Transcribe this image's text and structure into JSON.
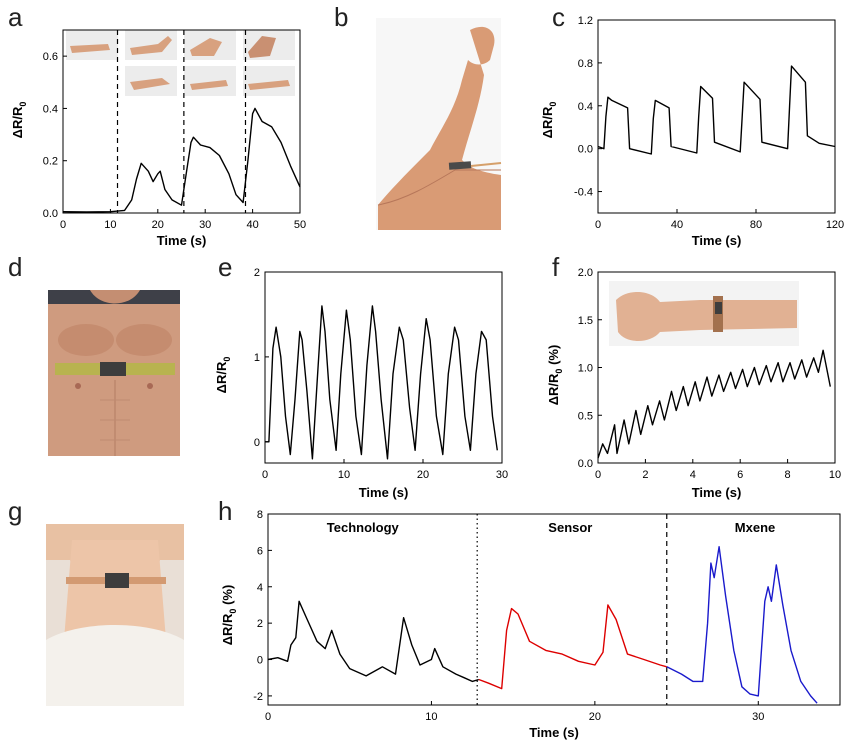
{
  "panel_letters": {
    "a": "a",
    "b": "b",
    "c": "c",
    "d": "d",
    "e": "e",
    "f": "f",
    "g": "g",
    "h": "h"
  },
  "chart_data": [
    {
      "panel": "a",
      "type": "line",
      "xlabel": "Time (s)",
      "ylabel": "ΔR/R0",
      "xlim": [
        0,
        50
      ],
      "ylim": [
        0,
        0.7
      ],
      "xticks": [
        0,
        10,
        20,
        30,
        40,
        50
      ],
      "yticks": [
        0.0,
        0.2,
        0.4,
        0.6
      ],
      "ytick_labels": [
        "0.0",
        "0.2",
        "0.4",
        "0.6"
      ],
      "dividers_x": [
        11.5,
        25.5,
        38.5
      ],
      "series": [
        {
          "color": "#000000",
          "points": [
            [
              0,
              0.005
            ],
            [
              5,
              0.004
            ],
            [
              10,
              0.005
            ],
            [
              13,
              0.01
            ],
            [
              14.5,
              0.05
            ],
            [
              15.5,
              0.13
            ],
            [
              16.5,
              0.19
            ],
            [
              18,
              0.16
            ],
            [
              19,
              0.12
            ],
            [
              20,
              0.15
            ],
            [
              20.5,
              0.16
            ],
            [
              21.5,
              0.09
            ],
            [
              23,
              0.05
            ],
            [
              25,
              0.03
            ],
            [
              26,
              0.15
            ],
            [
              27,
              0.27
            ],
            [
              27.5,
              0.29
            ],
            [
              29,
              0.26
            ],
            [
              31,
              0.25
            ],
            [
              33,
              0.22
            ],
            [
              35,
              0.15
            ],
            [
              36.5,
              0.07
            ],
            [
              38,
              0.04
            ],
            [
              39,
              0.2
            ],
            [
              40,
              0.38
            ],
            [
              40.5,
              0.4
            ],
            [
              42,
              0.35
            ],
            [
              44,
              0.33
            ],
            [
              46,
              0.27
            ],
            [
              48,
              0.18
            ],
            [
              50,
              0.1
            ]
          ]
        }
      ]
    },
    {
      "panel": "c",
      "type": "line",
      "xlabel": "Time (s)",
      "ylabel": "ΔR/R0",
      "xlim": [
        0,
        120
      ],
      "ylim": [
        -0.6,
        1.2
      ],
      "xticks": [
        0,
        40,
        80,
        120
      ],
      "yticks": [
        -0.4,
        0.0,
        0.4,
        0.8,
        1.2
      ],
      "ytick_labels": [
        "-0.4",
        "0.0",
        "0.4",
        "0.8",
        "1.2"
      ],
      "series": [
        {
          "color": "#000000",
          "points": [
            [
              0,
              0.02
            ],
            [
              3,
              0.0
            ],
            [
              4,
              0.3
            ],
            [
              5,
              0.48
            ],
            [
              7,
              0.45
            ],
            [
              15,
              0.38
            ],
            [
              16,
              0.0
            ],
            [
              27,
              -0.05
            ],
            [
              28,
              0.28
            ],
            [
              29,
              0.45
            ],
            [
              36,
              0.38
            ],
            [
              37,
              0.02
            ],
            [
              50,
              -0.04
            ],
            [
              51,
              0.3
            ],
            [
              52,
              0.58
            ],
            [
              58,
              0.47
            ],
            [
              59,
              0.06
            ],
            [
              72,
              -0.03
            ],
            [
              73,
              0.3
            ],
            [
              74,
              0.62
            ],
            [
              82,
              0.46
            ],
            [
              83,
              0.06
            ],
            [
              96,
              0.0
            ],
            [
              97,
              0.4
            ],
            [
              98,
              0.77
            ],
            [
              105,
              0.62
            ],
            [
              106,
              0.12
            ],
            [
              112,
              0.05
            ],
            [
              120,
              0.02
            ]
          ]
        }
      ]
    },
    {
      "panel": "e",
      "type": "line",
      "xlabel": "Time (s)",
      "ylabel": "ΔR/R0",
      "xlim": [
        0,
        30
      ],
      "ylim": [
        -0.25,
        2
      ],
      "xticks": [
        0,
        10,
        20,
        30
      ],
      "yticks": [
        0,
        1,
        2
      ],
      "ytick_labels": [
        "0",
        "1",
        "2"
      ],
      "series": [
        {
          "color": "#000000",
          "points": [
            [
              0,
              0
            ],
            [
              0.5,
              0.0
            ],
            [
              1.0,
              1.1
            ],
            [
              1.4,
              1.35
            ],
            [
              2.0,
              1.0
            ],
            [
              2.6,
              0.3
            ],
            [
              3.2,
              -0.15
            ],
            [
              3.8,
              0.5
            ],
            [
              4.4,
              1.3
            ],
            [
              4.7,
              1.2
            ],
            [
              5.3,
              0.6
            ],
            [
              6.0,
              -0.2
            ],
            [
              6.6,
              0.7
            ],
            [
              7.2,
              1.6
            ],
            [
              7.6,
              1.3
            ],
            [
              8.2,
              0.5
            ],
            [
              9.0,
              -0.1
            ],
            [
              9.6,
              0.8
            ],
            [
              10.3,
              1.55
            ],
            [
              10.8,
              1.2
            ],
            [
              11.5,
              0.3
            ],
            [
              12.2,
              -0.15
            ],
            [
              12.9,
              0.9
            ],
            [
              13.6,
              1.6
            ],
            [
              14.0,
              1.3
            ],
            [
              14.7,
              0.5
            ],
            [
              15.5,
              -0.2
            ],
            [
              16.2,
              0.8
            ],
            [
              17.0,
              1.35
            ],
            [
              17.5,
              1.2
            ],
            [
              18.3,
              0.4
            ],
            [
              19.0,
              -0.1
            ],
            [
              19.7,
              0.8
            ],
            [
              20.4,
              1.45
            ],
            [
              20.9,
              1.2
            ],
            [
              21.7,
              0.3
            ],
            [
              22.5,
              -0.15
            ],
            [
              23.2,
              0.8
            ],
            [
              24.0,
              1.35
            ],
            [
              24.5,
              1.2
            ],
            [
              25.3,
              0.3
            ],
            [
              26.0,
              -0.1
            ],
            [
              26.7,
              0.8
            ],
            [
              27.4,
              1.3
            ],
            [
              28.0,
              1.2
            ],
            [
              28.8,
              0.3
            ],
            [
              29.4,
              -0.1
            ]
          ]
        }
      ]
    },
    {
      "panel": "f",
      "type": "line",
      "xlabel": "Time (s)",
      "ylabel": "ΔR/R0 (%)",
      "xlim": [
        0,
        10
      ],
      "ylim": [
        0,
        2
      ],
      "xticks": [
        0,
        2,
        4,
        6,
        8,
        10
      ],
      "yticks": [
        0.0,
        0.5,
        1.0,
        1.5,
        2.0
      ],
      "ytick_labels": [
        "0.0",
        "0.5",
        "1.0",
        "1.5",
        "2.0"
      ],
      "series": [
        {
          "color": "#000000",
          "points": [
            [
              0,
              0.05
            ],
            [
              0.2,
              0.2
            ],
            [
              0.4,
              0.1
            ],
            [
              0.7,
              0.4
            ],
            [
              0.8,
              0.1
            ],
            [
              1.1,
              0.45
            ],
            [
              1.3,
              0.2
            ],
            [
              1.6,
              0.55
            ],
            [
              1.8,
              0.3
            ],
            [
              2.1,
              0.6
            ],
            [
              2.3,
              0.4
            ],
            [
              2.6,
              0.65
            ],
            [
              2.8,
              0.45
            ],
            [
              3.1,
              0.75
            ],
            [
              3.3,
              0.55
            ],
            [
              3.6,
              0.8
            ],
            [
              3.8,
              0.6
            ],
            [
              4.1,
              0.85
            ],
            [
              4.3,
              0.65
            ],
            [
              4.6,
              0.9
            ],
            [
              4.8,
              0.7
            ],
            [
              5.1,
              0.92
            ],
            [
              5.3,
              0.75
            ],
            [
              5.6,
              0.95
            ],
            [
              5.8,
              0.78
            ],
            [
              6.1,
              0.98
            ],
            [
              6.3,
              0.8
            ],
            [
              6.6,
              1.0
            ],
            [
              6.8,
              0.82
            ],
            [
              7.1,
              1.02
            ],
            [
              7.3,
              0.85
            ],
            [
              7.6,
              1.05
            ],
            [
              7.8,
              0.85
            ],
            [
              8.1,
              1.05
            ],
            [
              8.3,
              0.88
            ],
            [
              8.6,
              1.08
            ],
            [
              8.8,
              0.9
            ],
            [
              9.1,
              1.1
            ],
            [
              9.3,
              0.95
            ],
            [
              9.5,
              1.18
            ],
            [
              9.8,
              0.8
            ]
          ]
        }
      ]
    },
    {
      "panel": "h",
      "type": "line",
      "xlabel": "Time (s)",
      "ylabel": "ΔR/R0 (%)",
      "xlim": [
        0,
        35
      ],
      "ylim": [
        -2.5,
        8
      ],
      "xticks": [
        0,
        10,
        20,
        30
      ],
      "yticks": [
        -2,
        0,
        2,
        4,
        6,
        8
      ],
      "ytick_labels": [
        "-2",
        "0",
        "2",
        "4",
        "6",
        "8"
      ],
      "dividers_x": [
        12.8,
        24.4
      ],
      "annotations": [
        {
          "text": "Technology",
          "x": 5.8,
          "y": 7.0
        },
        {
          "text": "Sensor",
          "x": 18.5,
          "y": 7.0
        },
        {
          "text": "Mxene",
          "x": 29.8,
          "y": 7.0
        }
      ],
      "series": [
        {
          "name": "Technology",
          "color": "#000000",
          "points": [
            [
              0,
              0
            ],
            [
              0.6,
              0.1
            ],
            [
              1.2,
              -0.1
            ],
            [
              1.4,
              0.8
            ],
            [
              1.7,
              1.2
            ],
            [
              1.9,
              3.2
            ],
            [
              2.4,
              2.2
            ],
            [
              3.0,
              1.0
            ],
            [
              3.5,
              0.6
            ],
            [
              3.9,
              1.6
            ],
            [
              4.4,
              0.3
            ],
            [
              5.0,
              -0.5
            ],
            [
              6.0,
              -0.9
            ],
            [
              7.0,
              -0.4
            ],
            [
              7.8,
              -0.8
            ],
            [
              8.3,
              2.3
            ],
            [
              8.8,
              0.8
            ],
            [
              9.3,
              -0.3
            ],
            [
              10.0,
              0.0
            ],
            [
              10.2,
              0.6
            ],
            [
              10.7,
              -0.4
            ],
            [
              11.5,
              -0.8
            ],
            [
              12.0,
              -1.0
            ],
            [
              12.5,
              -1.2
            ],
            [
              12.9,
              -1.1
            ]
          ]
        },
        {
          "name": "Sensor",
          "color": "#dd0000",
          "points": [
            [
              12.9,
              -1.1
            ],
            [
              13.5,
              -1.3
            ],
            [
              14.3,
              -1.6
            ],
            [
              14.6,
              1.6
            ],
            [
              14.9,
              2.8
            ],
            [
              15.3,
              2.5
            ],
            [
              16.0,
              1.0
            ],
            [
              17.0,
              0.5
            ],
            [
              18.0,
              0.3
            ],
            [
              19.0,
              -0.1
            ],
            [
              20.0,
              -0.3
            ],
            [
              20.5,
              0.4
            ],
            [
              20.8,
              3.0
            ],
            [
              21.3,
              2.2
            ],
            [
              22.0,
              0.3
            ],
            [
              23.0,
              0.0
            ],
            [
              24.0,
              -0.3
            ],
            [
              24.4,
              -0.4
            ]
          ]
        },
        {
          "name": "Mxene",
          "color": "#1a1acc",
          "points": [
            [
              24.4,
              -0.4
            ],
            [
              25.3,
              -0.8
            ],
            [
              26.0,
              -1.2
            ],
            [
              26.6,
              -1.2
            ],
            [
              26.9,
              2.0
            ],
            [
              27.1,
              5.3
            ],
            [
              27.3,
              4.5
            ],
            [
              27.6,
              6.2
            ],
            [
              28.0,
              3.5
            ],
            [
              28.5,
              0.5
            ],
            [
              29.0,
              -1.5
            ],
            [
              29.5,
              -1.9
            ],
            [
              30.0,
              -2.0
            ],
            [
              30.4,
              3.2
            ],
            [
              30.6,
              4.0
            ],
            [
              30.8,
              3.2
            ],
            [
              31.1,
              5.2
            ],
            [
              31.5,
              3.0
            ],
            [
              32.0,
              0.5
            ],
            [
              32.6,
              -1.2
            ],
            [
              33.2,
              -2.0
            ],
            [
              33.6,
              -2.4
            ]
          ]
        }
      ]
    }
  ]
}
